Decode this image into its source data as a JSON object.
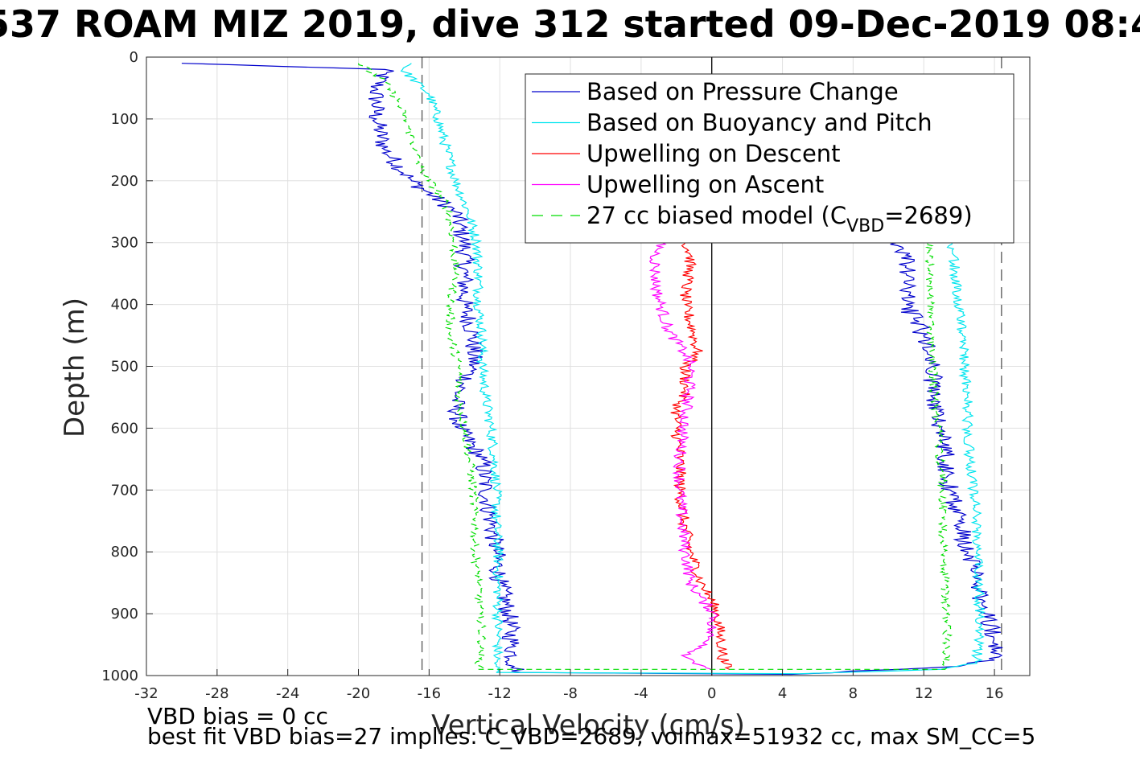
{
  "chart_data": {
    "type": "line",
    "title": "537 ROAM MIZ 2019, dive 312 started 09-Dec-2019 08:4",
    "xlabel": "Vertical Velocity (cm/s)",
    "ylabel": "Depth (m)",
    "xlim": [
      -32,
      18
    ],
    "ylim": [
      0,
      1000
    ],
    "y_reversed": true,
    "grid": true,
    "legend_position": "top-right",
    "x_ticks": [
      "-32",
      "-28",
      "-24",
      "-20",
      "-16",
      "-12",
      "-8",
      "-4",
      "0",
      "4",
      "8",
      "12",
      "16"
    ],
    "y_ticks": [
      "0",
      "100",
      "200",
      "300",
      "400",
      "500",
      "600",
      "700",
      "800",
      "900",
      "1000"
    ],
    "reference_lines": [
      {
        "type": "vertical",
        "x": -16.4,
        "style": "dashed",
        "color": "#555555"
      },
      {
        "type": "vertical",
        "x": 16.4,
        "style": "dashed",
        "color": "#555555"
      },
      {
        "type": "vertical",
        "x": 0,
        "style": "solid",
        "color": "#000000"
      }
    ],
    "series": [
      {
        "name": "Based on Pressure Change",
        "color": "#0000cc",
        "style": "solid",
        "noise": 0.55,
        "points": [
          [
            -30,
            10
          ],
          [
            -18.5,
            20
          ],
          [
            -19,
            50
          ],
          [
            -19,
            100
          ],
          [
            -18.5,
            150
          ],
          [
            -17,
            200
          ],
          [
            -14.5,
            250
          ],
          [
            -14,
            300
          ],
          [
            -14,
            350
          ],
          [
            -14,
            400
          ],
          [
            -13.5,
            450
          ],
          [
            -13.5,
            500
          ],
          [
            -14.5,
            550
          ],
          [
            -14.3,
            600
          ],
          [
            -13,
            650
          ],
          [
            -12.8,
            700
          ],
          [
            -12.5,
            750
          ],
          [
            -12.2,
            800
          ],
          [
            -12,
            850
          ],
          [
            -11.5,
            900
          ],
          [
            -11.3,
            950
          ],
          [
            -11.2,
            985
          ],
          [
            -10.8,
            995
          ],
          [
            4.5,
            998
          ],
          [
            14,
            985
          ],
          [
            16,
            975
          ],
          [
            16.2,
            950
          ],
          [
            15.5,
            900
          ],
          [
            15,
            850
          ],
          [
            14.5,
            800
          ],
          [
            13.5,
            700
          ],
          [
            13,
            600
          ],
          [
            12.5,
            550
          ],
          [
            12.5,
            500
          ],
          [
            12,
            450
          ],
          [
            11,
            400
          ],
          [
            11,
            350
          ],
          [
            11,
            320
          ],
          [
            10.5,
            300
          ]
        ]
      },
      {
        "name": "Based on Buoyancy and Pitch",
        "color": "#00e5ee",
        "style": "solid",
        "noise": 0.3,
        "points": [
          [
            -17,
            10
          ],
          [
            -17.5,
            20
          ],
          [
            -16,
            60
          ],
          [
            -15.5,
            100
          ],
          [
            -15,
            150
          ],
          [
            -14.5,
            200
          ],
          [
            -13.8,
            250
          ],
          [
            -13.3,
            300
          ],
          [
            -13.2,
            350
          ],
          [
            -13.2,
            400
          ],
          [
            -13,
            450
          ],
          [
            -13,
            500
          ],
          [
            -12.8,
            550
          ],
          [
            -12.5,
            600
          ],
          [
            -12.3,
            650
          ],
          [
            -12.2,
            700
          ],
          [
            -12.2,
            750
          ],
          [
            -12.1,
            800
          ],
          [
            -12.1,
            850
          ],
          [
            -12.1,
            900
          ],
          [
            -12.1,
            950
          ],
          [
            -12.2,
            985
          ],
          [
            -12.2,
            995
          ],
          [
            5,
            997
          ],
          [
            13,
            990
          ],
          [
            15,
            980
          ],
          [
            15.1,
            950
          ],
          [
            15.2,
            900
          ],
          [
            15.1,
            850
          ],
          [
            15,
            800
          ],
          [
            15,
            750
          ],
          [
            14.8,
            700
          ],
          [
            14.6,
            650
          ],
          [
            14.5,
            600
          ],
          [
            14.5,
            550
          ],
          [
            14.3,
            500
          ],
          [
            14.2,
            450
          ],
          [
            14,
            400
          ],
          [
            13.8,
            350
          ],
          [
            13.6,
            300
          ]
        ]
      },
      {
        "name": "Upwelling on Descent",
        "color": "#ff0000",
        "style": "solid",
        "noise": 0.35,
        "points": [
          [
            -1.5,
            300
          ],
          [
            -1.2,
            320
          ],
          [
            -1.3,
            350
          ],
          [
            -1.5,
            380
          ],
          [
            -1.5,
            400
          ],
          [
            -1.0,
            450
          ],
          [
            -0.8,
            480
          ],
          [
            -1.5,
            500
          ],
          [
            -1.5,
            540
          ],
          [
            -2,
            570
          ],
          [
            -2,
            600
          ],
          [
            -1.8,
            650
          ],
          [
            -1.8,
            700
          ],
          [
            -1.6,
            750
          ],
          [
            -1.2,
            800
          ],
          [
            -0.6,
            850
          ],
          [
            0,
            880
          ],
          [
            0.3,
            900
          ],
          [
            0.5,
            940
          ],
          [
            0.7,
            980
          ],
          [
            1,
            990
          ]
        ]
      },
      {
        "name": "Upwelling on Ascent",
        "color": "#ff00ff",
        "style": "solid",
        "noise": 0.35,
        "points": [
          [
            -2.8,
            300
          ],
          [
            -3.2,
            320
          ],
          [
            -3.2,
            350
          ],
          [
            -3.1,
            380
          ],
          [
            -2.9,
            400
          ],
          [
            -2.5,
            440
          ],
          [
            -1.5,
            480
          ],
          [
            -1.2,
            500
          ],
          [
            -1.3,
            540
          ],
          [
            -1.6,
            600
          ],
          [
            -1.8,
            650
          ],
          [
            -1.8,
            700
          ],
          [
            -1.7,
            750
          ],
          [
            -1.5,
            800
          ],
          [
            -1.2,
            850
          ],
          [
            -0.5,
            880
          ],
          [
            0.2,
            900
          ],
          [
            -0.3,
            950
          ],
          [
            -1.5,
            970
          ],
          [
            0,
            990
          ]
        ]
      },
      {
        "name": "27 cc biased model (C",
        "legend_sub": "VBD",
        "legend_suffix": "=2689)",
        "color": "#00dd00",
        "style": "dashed",
        "noise": 0.25,
        "points": [
          [
            -20,
            10
          ],
          [
            -18.5,
            40
          ],
          [
            -17.8,
            70
          ],
          [
            -17.2,
            110
          ],
          [
            -16.8,
            150
          ],
          [
            -16.5,
            180
          ],
          [
            -15.2,
            230
          ],
          [
            -14.8,
            260
          ],
          [
            -14.6,
            300
          ],
          [
            -14.5,
            350
          ],
          [
            -14.8,
            400
          ],
          [
            -14.8,
            450
          ],
          [
            -14.3,
            500
          ],
          [
            -14.3,
            550
          ],
          [
            -14,
            600
          ],
          [
            -13.7,
            650
          ],
          [
            -13.5,
            700
          ],
          [
            -13.4,
            750
          ],
          [
            -13.4,
            800
          ],
          [
            -13.2,
            850
          ],
          [
            -13.1,
            900
          ],
          [
            -13,
            950
          ],
          [
            -13.2,
            990
          ],
          [
            13.2,
            990
          ],
          [
            13.3,
            950
          ],
          [
            13.3,
            900
          ],
          [
            13.2,
            850
          ],
          [
            13.1,
            800
          ],
          [
            13.1,
            750
          ],
          [
            13.1,
            700
          ],
          [
            12.9,
            650
          ],
          [
            12.8,
            600
          ],
          [
            12.6,
            550
          ],
          [
            12.5,
            500
          ],
          [
            12.4,
            450
          ],
          [
            12.4,
            400
          ],
          [
            12.3,
            350
          ],
          [
            12.3,
            300
          ]
        ]
      }
    ],
    "annotations": [
      "VBD bias = 0 cc",
      "best fit VBD bias=27 implies: C_VBD=2689, volmax=51932 cc, max SM_CC=5"
    ]
  }
}
